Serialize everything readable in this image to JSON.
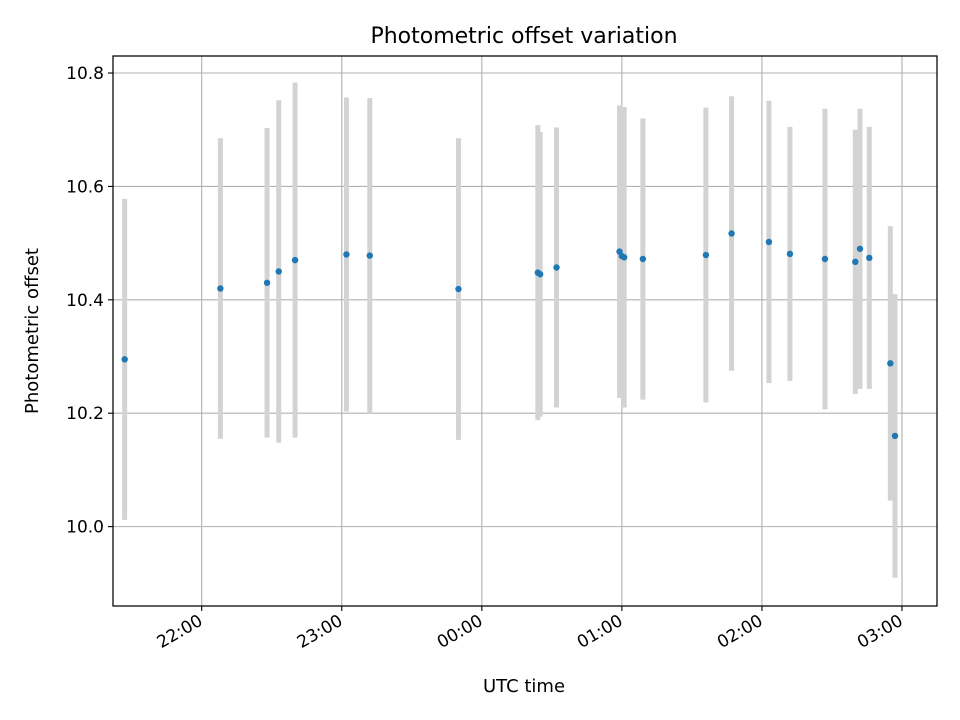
{
  "chart_data": {
    "type": "scatter",
    "title": "Photometric offset variation",
    "xlabel": "UTC time",
    "ylabel": "Photometric offset",
    "x_axis_kind": "time",
    "x_ticks": [
      "22:00",
      "23:00",
      "00:00",
      "01:00",
      "02:00",
      "03:00"
    ],
    "y_ticks": [
      "10.0",
      "10.2",
      "10.4",
      "10.6",
      "10.8"
    ],
    "xlim": [
      "21:22",
      "03:15"
    ],
    "ylim": [
      9.86,
      10.83
    ],
    "grid": true,
    "errorbar_color": "#d3d3d3",
    "point_color": "#1f77b4",
    "series": [
      {
        "points": [
          {
            "x": "21:27",
            "y": 10.295,
            "err": 0.283
          },
          {
            "x": "22:08",
            "y": 10.42,
            "err": 0.265
          },
          {
            "x": "22:28",
            "y": 10.43,
            "err": 0.273
          },
          {
            "x": "22:33",
            "y": 10.45,
            "err": 0.302
          },
          {
            "x": "22:40",
            "y": 10.47,
            "err": 0.313
          },
          {
            "x": "23:02",
            "y": 10.48,
            "err": 0.277
          },
          {
            "x": "23:12",
            "y": 10.478,
            "err": 0.278
          },
          {
            "x": "23:50",
            "y": 10.419,
            "err": 0.266
          },
          {
            "x": "00:24",
            "y": 10.448,
            "err": 0.26
          },
          {
            "x": "00:25",
            "y": 10.445,
            "err": 0.251
          },
          {
            "x": "00:32",
            "y": 10.457,
            "err": 0.247
          },
          {
            "x": "00:59",
            "y": 10.485,
            "err": 0.258
          },
          {
            "x": "01:00",
            "y": 10.477,
            "err": 0.25
          },
          {
            "x": "01:01",
            "y": 10.475,
            "err": 0.265
          },
          {
            "x": "01:09",
            "y": 10.472,
            "err": 0.248
          },
          {
            "x": "01:36",
            "y": 10.479,
            "err": 0.26
          },
          {
            "x": "01:47",
            "y": 10.517,
            "err": 0.242
          },
          {
            "x": "02:03",
            "y": 10.502,
            "err": 0.249
          },
          {
            "x": "02:12",
            "y": 10.481,
            "err": 0.224
          },
          {
            "x": "02:27",
            "y": 10.472,
            "err": 0.265
          },
          {
            "x": "02:40",
            "y": 10.467,
            "err": 0.233
          },
          {
            "x": "02:42",
            "y": 10.49,
            "err": 0.247
          },
          {
            "x": "02:46",
            "y": 10.474,
            "err": 0.231
          },
          {
            "x": "02:55",
            "y": 10.288,
            "err": 0.242
          },
          {
            "x": "02:57",
            "y": 10.16,
            "err": 0.25
          }
        ]
      }
    ]
  }
}
